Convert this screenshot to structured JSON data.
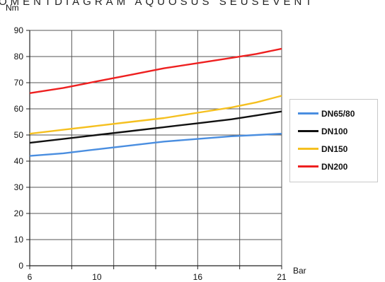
{
  "chart_data": {
    "type": "line",
    "title": "OMENTDIAGRAM AQUOSUS SEUSEVENT",
    "y_unit": "Nm",
    "x_unit": "Bar",
    "xlim": [
      6,
      21
    ],
    "ylim": [
      0,
      90
    ],
    "x_ticks": [
      6,
      10,
      16,
      21
    ],
    "y_ticks": [
      0,
      10,
      20,
      30,
      40,
      50,
      60,
      70,
      80,
      90
    ],
    "grid": true,
    "legend_position": "right",
    "x": [
      6,
      8,
      10,
      12,
      14,
      16,
      18,
      19.5,
      21
    ],
    "series": [
      {
        "name": "DN65/80",
        "color": "#4a8ee0",
        "values": [
          42,
          43,
          44.5,
          46,
          47.5,
          48.5,
          49.5,
          50,
          50.5
        ]
      },
      {
        "name": "DN100",
        "color": "#111111",
        "values": [
          47,
          48.5,
          50,
          51.5,
          53,
          54.5,
          56,
          57.5,
          59
        ]
      },
      {
        "name": "DN150",
        "color": "#f5c020",
        "values": [
          50.5,
          52,
          53.5,
          55,
          56.5,
          58.5,
          60.5,
          62.5,
          65
        ]
      },
      {
        "name": "DN200",
        "color": "#ee2020",
        "values": [
          66,
          68,
          70.5,
          73,
          75.5,
          77.5,
          79.5,
          81,
          83
        ]
      }
    ]
  }
}
